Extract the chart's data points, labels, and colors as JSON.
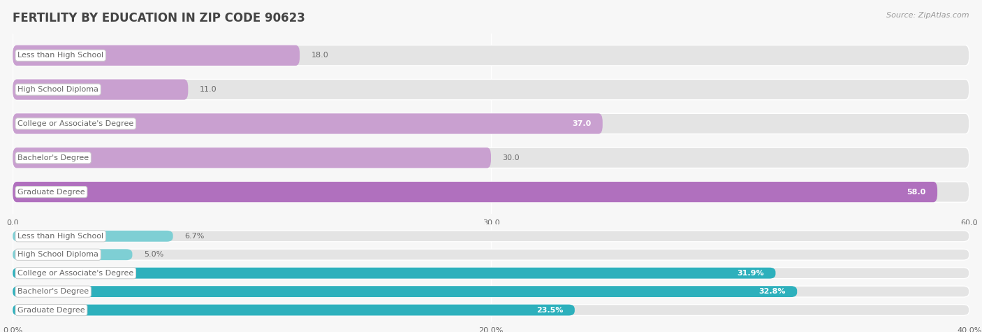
{
  "title": "FERTILITY BY EDUCATION IN ZIP CODE 90623",
  "source": "Source: ZipAtlas.com",
  "top_chart": {
    "categories": [
      "Less than High School",
      "High School Diploma",
      "College or Associate's Degree",
      "Bachelor's Degree",
      "Graduate Degree"
    ],
    "values": [
      18.0,
      11.0,
      37.0,
      30.0,
      58.0
    ],
    "xlim": [
      0,
      60
    ],
    "xticks": [
      0.0,
      30.0,
      60.0
    ],
    "xtick_labels": [
      "0.0",
      "30.0",
      "60.0"
    ],
    "bar_colors": [
      "#c9a0d0",
      "#c9a0d0",
      "#c9a0d0",
      "#c9a0d0",
      "#b070be"
    ],
    "value_inside": [
      false,
      false,
      true,
      false,
      true
    ]
  },
  "bottom_chart": {
    "categories": [
      "Less than High School",
      "High School Diploma",
      "College or Associate's Degree",
      "Bachelor's Degree",
      "Graduate Degree"
    ],
    "values": [
      6.7,
      5.0,
      31.9,
      32.8,
      23.5
    ],
    "value_strs": [
      "6.7%",
      "5.0%",
      "31.9%",
      "32.8%",
      "23.5%"
    ],
    "xlim": [
      0,
      40
    ],
    "xticks": [
      0.0,
      20.0,
      40.0
    ],
    "xtick_labels": [
      "0.0%",
      "20.0%",
      "40.0%"
    ],
    "bar_colors": [
      "#7ecfd4",
      "#7ecfd4",
      "#2db0bc",
      "#2db0bc",
      "#2db0bc"
    ],
    "value_inside": [
      false,
      false,
      true,
      true,
      true
    ]
  },
  "bg_color": "#f7f7f7",
  "bar_bg_color": "#e4e4e4",
  "label_text_color": "#666666",
  "value_color_outside": "#666666",
  "value_color_inside": "#ffffff",
  "title_color": "#444444",
  "source_color": "#999999",
  "bar_height": 0.6,
  "title_fontsize": 12,
  "label_fontsize": 8,
  "value_fontsize": 8,
  "tick_fontsize": 8,
  "source_fontsize": 8
}
